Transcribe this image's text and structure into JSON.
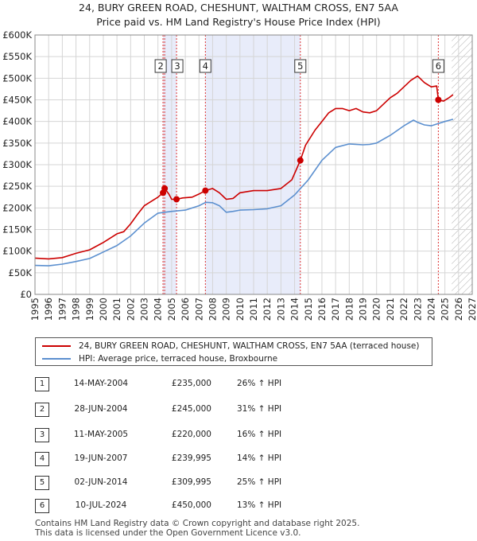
{
  "header": {
    "title_line1": "24, BURY GREEN ROAD, CHESHUNT, WALTHAM CROSS, EN7 5AA",
    "title_line2": "Price paid vs. HM Land Registry's House Price Index (HPI)"
  },
  "colors": {
    "property_line": "#cc0000",
    "hpi_line": "#5b8fcf",
    "shade": "#e8ecfa",
    "hatch": "#aaaaaa",
    "grid": "#d5d5d5",
    "marker_vline": "#dd3333"
  },
  "chart_data": {
    "type": "line",
    "title": "Price paid vs. HM Land Registry's House Price Index (HPI)",
    "xlabel": "",
    "ylabel": "",
    "xlim": [
      1995,
      2027
    ],
    "ylim": [
      0,
      600000
    ],
    "y_ticks": [
      0,
      50000,
      100000,
      150000,
      200000,
      250000,
      300000,
      350000,
      400000,
      450000,
      500000,
      550000,
      600000
    ],
    "y_tick_labels": [
      "£0",
      "£50K",
      "£100K",
      "£150K",
      "£200K",
      "£250K",
      "£300K",
      "£350K",
      "£400K",
      "£450K",
      "£500K",
      "£550K",
      "£600K"
    ],
    "x_ticks": [
      1995,
      1996,
      1997,
      1998,
      1999,
      2000,
      2001,
      2002,
      2003,
      2004,
      2005,
      2006,
      2007,
      2008,
      2009,
      2010,
      2011,
      2012,
      2013,
      2014,
      2015,
      2016,
      2017,
      2018,
      2019,
      2020,
      2021,
      2022,
      2023,
      2024,
      2025,
      2026,
      2027
    ],
    "x_tick_labels": [
      "1995",
      "1996",
      "1997",
      "1998",
      "1999",
      "2000",
      "2001",
      "2002",
      "2003",
      "2004",
      "2005",
      "2006",
      "2007",
      "2008",
      "2009",
      "2010",
      "2011",
      "2012",
      "2013",
      "2014",
      "2015",
      "2016",
      "2017",
      "2018",
      "2019",
      "2020",
      "2021",
      "2022",
      "2023",
      "2024",
      "2025",
      "2026",
      "2027"
    ],
    "shaded_ranges": [
      [
        2004.37,
        2005.36
      ],
      [
        2007.47,
        2014.42
      ]
    ],
    "hatched_range": [
      2025.5,
      2027
    ],
    "series": [
      {
        "name": "24, BURY GREEN ROAD, CHESHUNT, WALTHAM CROSS, EN7 5AA (terraced house)",
        "points": [
          [
            1995.0,
            84000
          ],
          [
            1996.0,
            82000
          ],
          [
            1997.0,
            85000
          ],
          [
            1997.5,
            90000
          ],
          [
            1998.0,
            95000
          ],
          [
            1999.0,
            103000
          ],
          [
            2000.0,
            120000
          ],
          [
            2001.0,
            140000
          ],
          [
            2001.5,
            145000
          ],
          [
            2002.0,
            163000
          ],
          [
            2002.5,
            185000
          ],
          [
            2003.0,
            205000
          ],
          [
            2003.5,
            215000
          ],
          [
            2004.0,
            225000
          ],
          [
            2004.37,
            235000
          ],
          [
            2004.49,
            245000
          ],
          [
            2004.8,
            232000
          ],
          [
            2005.0,
            220000
          ],
          [
            2005.36,
            220000
          ],
          [
            2005.8,
            223000
          ],
          [
            2006.5,
            225000
          ],
          [
            2007.0,
            232000
          ],
          [
            2007.47,
            239995
          ],
          [
            2008.0,
            245000
          ],
          [
            2008.5,
            235000
          ],
          [
            2009.0,
            220000
          ],
          [
            2009.5,
            222000
          ],
          [
            2010.0,
            235000
          ],
          [
            2011.0,
            240000
          ],
          [
            2012.0,
            240000
          ],
          [
            2013.0,
            245000
          ],
          [
            2013.8,
            265000
          ],
          [
            2014.42,
            309995
          ],
          [
            2014.8,
            345000
          ],
          [
            2015.5,
            380000
          ],
          [
            2016.0,
            400000
          ],
          [
            2016.5,
            420000
          ],
          [
            2017.0,
            430000
          ],
          [
            2017.5,
            430000
          ],
          [
            2018.0,
            425000
          ],
          [
            2018.5,
            430000
          ],
          [
            2019.0,
            422000
          ],
          [
            2019.5,
            420000
          ],
          [
            2020.0,
            425000
          ],
          [
            2020.5,
            440000
          ],
          [
            2021.0,
            455000
          ],
          [
            2021.5,
            465000
          ],
          [
            2022.0,
            480000
          ],
          [
            2022.5,
            495000
          ],
          [
            2023.0,
            505000
          ],
          [
            2023.5,
            490000
          ],
          [
            2024.0,
            480000
          ],
          [
            2024.4,
            482000
          ],
          [
            2024.52,
            450000
          ],
          [
            2024.9,
            447000
          ],
          [
            2025.3,
            455000
          ],
          [
            2025.6,
            462000
          ]
        ]
      },
      {
        "name": "HPI: Average price, terraced house, Broxbourne",
        "points": [
          [
            1995.0,
            67000
          ],
          [
            1996.0,
            66000
          ],
          [
            1997.0,
            70000
          ],
          [
            1998.0,
            76000
          ],
          [
            1999.0,
            83000
          ],
          [
            2000.0,
            98000
          ],
          [
            2001.0,
            113000
          ],
          [
            2002.0,
            135000
          ],
          [
            2003.0,
            165000
          ],
          [
            2004.0,
            188000
          ],
          [
            2005.0,
            192000
          ],
          [
            2006.0,
            195000
          ],
          [
            2007.0,
            205000
          ],
          [
            2007.5,
            213000
          ],
          [
            2008.0,
            212000
          ],
          [
            2008.5,
            205000
          ],
          [
            2009.0,
            190000
          ],
          [
            2009.5,
            192000
          ],
          [
            2010.0,
            195000
          ],
          [
            2011.0,
            196000
          ],
          [
            2012.0,
            198000
          ],
          [
            2013.0,
            205000
          ],
          [
            2014.0,
            230000
          ],
          [
            2015.0,
            265000
          ],
          [
            2016.0,
            310000
          ],
          [
            2017.0,
            340000
          ],
          [
            2018.0,
            348000
          ],
          [
            2019.0,
            346000
          ],
          [
            2019.5,
            347000
          ],
          [
            2020.0,
            350000
          ],
          [
            2021.0,
            368000
          ],
          [
            2022.0,
            390000
          ],
          [
            2022.7,
            403000
          ],
          [
            2023.0,
            398000
          ],
          [
            2023.5,
            392000
          ],
          [
            2024.0,
            390000
          ],
          [
            2024.5,
            395000
          ],
          [
            2025.0,
            400000
          ],
          [
            2025.6,
            405000
          ]
        ]
      }
    ],
    "sales": [
      {
        "label": "1",
        "date": "14-MAY-2004",
        "x": 2004.37,
        "price": 235000,
        "price_text": "£235,000",
        "hpi_text": "26% ↑ HPI"
      },
      {
        "label": "2",
        "date": "28-JUN-2004",
        "x": 2004.49,
        "price": 245000,
        "price_text": "£245,000",
        "hpi_text": "31% ↑ HPI"
      },
      {
        "label": "3",
        "date": "11-MAY-2005",
        "x": 2005.36,
        "price": 220000,
        "price_text": "£220,000",
        "hpi_text": "16% ↑ HPI"
      },
      {
        "label": "4",
        "date": "19-JUN-2007",
        "x": 2007.47,
        "price": 239995,
        "price_text": "£239,995",
        "hpi_text": "14% ↑ HPI"
      },
      {
        "label": "5",
        "date": "02-JUN-2014",
        "x": 2014.42,
        "price": 309995,
        "price_text": "£309,995",
        "hpi_text": "25% ↑ HPI"
      },
      {
        "label": "6",
        "date": "10-JUL-2024",
        "x": 2024.52,
        "price": 450000,
        "price_text": "£450,000",
        "hpi_text": "13% ↑ HPI"
      }
    ],
    "boxed_labels": [
      "2",
      "3",
      "4",
      "5",
      "6"
    ]
  },
  "legend": {
    "property": "24, BURY GREEN ROAD, CHESHUNT, WALTHAM CROSS, EN7 5AA (terraced house)",
    "hpi": "HPI: Average price, terraced house, Broxbourne"
  },
  "footer": {
    "line1": "Contains HM Land Registry data © Crown copyright and database right 2025.",
    "line2": "This data is licensed under the Open Government Licence v3.0."
  }
}
